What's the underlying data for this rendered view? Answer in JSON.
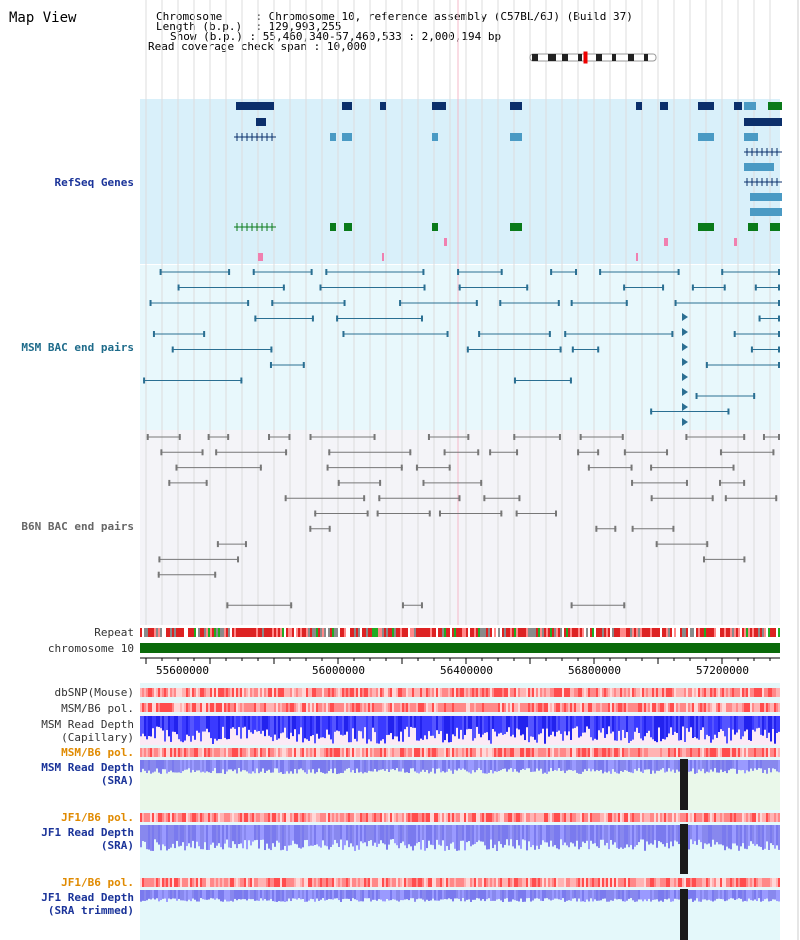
{
  "title": "Map View",
  "info": {
    "chromosome_key": "Chromosome",
    "chromosome_val": "Chromosome 10, reference assembly (C57BL/6J) (Build 37)",
    "length_key": "Length (b.p.)",
    "length_val": "129,993,255",
    "show_key": "Show (b.p.)",
    "show_val": "55,460,340-57,460,533 : 2,000,194 bp",
    "coverage_key": "Read coverage check span",
    "coverage_val": "10,000"
  },
  "tracks": {
    "refseq": "RefSeq Genes",
    "msm_bac": "MSM BAC end pairs",
    "b6n_bac": "B6N BAC end pairs",
    "repeat": "Repeat",
    "chromosome": "chromosome 10",
    "dbsnp": "dbSNP(Mouse)",
    "msm_b6_pol": "MSM/B6 pol.",
    "msm_read_depth_cap_1": "MSM Read Depth",
    "msm_read_depth_cap_2": "(Capillary)",
    "msm_b6_pol_2": "MSM/B6 pol.",
    "msm_read_depth_sra_1": "MSM Read Depth",
    "msm_read_depth_sra_2": "(SRA)",
    "jf1_b6_pol": "JF1/B6 pol.",
    "jf1_read_depth_sra_1": "JF1 Read Depth",
    "jf1_read_depth_sra_2": "(SRA)",
    "jf1_b6_pol_2": "JF1/B6 pol.",
    "jf1_read_depth_trim_1": "JF1 Read Depth",
    "jf1_read_depth_trim_2": "(SRA trimmed)"
  },
  "axis": {
    "ticks": [
      "55600000",
      "56000000",
      "56400000",
      "56800000",
      "57200000"
    ]
  },
  "colors": {
    "refseq_bg": "#d9f0fa",
    "msm_bg": "#e8f8fc",
    "b6n_bg": "#f4f4f8",
    "gene_dark": "#0b2f6b",
    "gene_light": "#4a9ac4",
    "gene_green": "#0a7a1a",
    "bac_teal": "#2a6f92",
    "bac_gray": "#777777",
    "chrom_green": "#0a6a0a",
    "depth_blue": "#2222ee",
    "depth_lav": "#8888ee",
    "pol_red": "#ee3333"
  }
}
